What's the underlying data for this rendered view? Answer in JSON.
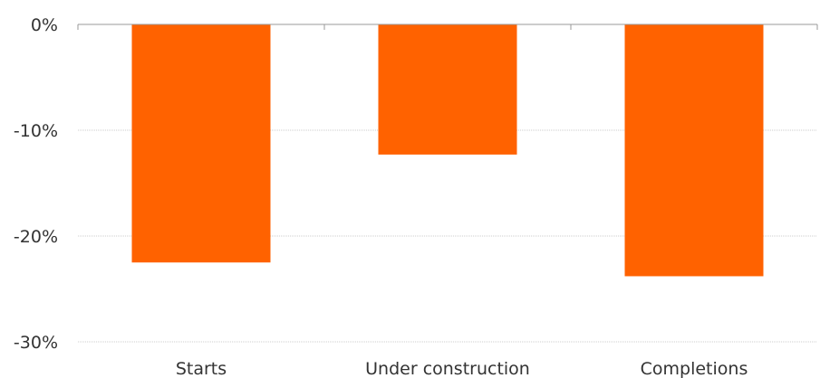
{
  "chart_data": {
    "type": "bar",
    "categories": [
      "Starts",
      "Under construction",
      "Completions"
    ],
    "values": [
      -22.5,
      -12.3,
      -23.8
    ],
    "title": "",
    "xlabel": "",
    "ylabel": "",
    "ylim": [
      -30,
      0
    ],
    "yticks": [
      0,
      -10,
      -20,
      -30
    ],
    "ytick_labels": [
      "0%",
      "-10%",
      "-20%",
      "-30%"
    ],
    "grid": true,
    "legend": "none",
    "colors": {
      "bar": "#ff6200",
      "grid": "#cccccc",
      "axis": "#999999",
      "text": "#333333"
    }
  }
}
